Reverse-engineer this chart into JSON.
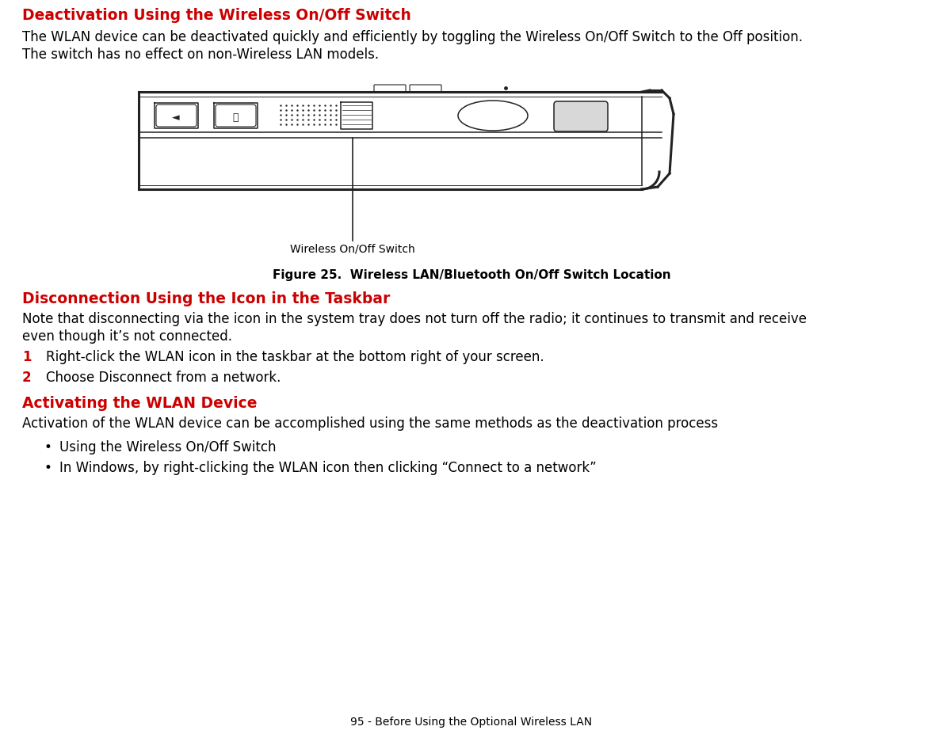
{
  "bg_color": "#ffffff",
  "heading_color": "#cc0000",
  "body_color": "#000000",
  "number_color": "#cc0000",
  "heading1": "Deactivation Using the Wireless On/Off Switch",
  "para1_line1": "The WLAN device can be deactivated quickly and efficiently by toggling the Wireless On/Off Switch to the Off position.",
  "para1_line2": "The switch has no effect on non-Wireless LAN models.",
  "figure_caption": "Figure 25.  Wireless LAN/Bluetooth On/Off Switch Location",
  "label_switch": "Wireless On/Off Switch",
  "heading2": "Disconnection Using the Icon in the Taskbar",
  "para2_line1": "Note that disconnecting via the icon in the system tray does not turn off the radio; it continues to transmit and receive",
  "para2_line2": "even though it’s not connected.",
  "step1_num": "1",
  "step1_text": "Right-click the WLAN icon in the taskbar at the bottom right of your screen.",
  "step2_num": "2",
  "step2_text": "Choose Disconnect from a network.",
  "heading3": "Activating the WLAN Device",
  "para3": "Activation of the WLAN device can be accomplished using the same methods as the deactivation process",
  "bullet1": "Using the Wireless On/Off Switch",
  "bullet2": "In Windows, by right-clicking the WLAN icon then clicking “Connect to a network”",
  "footer": "95 - Before Using the Optional Wireless LAN",
  "heading_fontsize": 13.5,
  "body_fontsize": 12,
  "caption_fontsize": 11,
  "footer_fontsize": 10
}
